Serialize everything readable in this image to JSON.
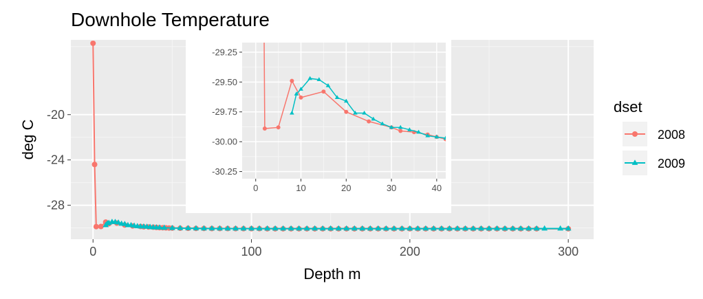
{
  "chart_data": {
    "type": "line",
    "title": "Downhole Temperature",
    "xlabel": "Depth m",
    "ylabel": "deg C",
    "xlim": [
      -14,
      316
    ],
    "ylim": [
      -31.0,
      -13.4
    ],
    "x_ticks": [
      0,
      100,
      200,
      300
    ],
    "x_tick_labels": [
      "0",
      "100",
      "200",
      "300"
    ],
    "y_ticks": [
      -20,
      -24,
      -28
    ],
    "y_tick_labels": [
      "-20",
      "-24",
      "-28"
    ],
    "grid": true,
    "legend": {
      "title": "dset",
      "position": "right",
      "entries": [
        "2008",
        "2009"
      ]
    },
    "series": [
      {
        "name": "2008",
        "color": "#F8766D",
        "marker": "circle",
        "x": [
          0,
          1,
          2,
          5,
          8,
          10,
          15,
          20,
          25,
          30,
          32,
          35,
          38,
          40,
          42,
          44,
          46,
          48,
          50,
          55,
          60,
          65,
          70,
          75,
          80,
          85,
          90,
          95,
          100,
          105,
          110,
          115,
          120,
          125,
          130,
          135,
          140,
          145,
          150,
          155,
          160,
          165,
          170,
          175,
          180,
          185,
          190,
          195,
          200,
          205,
          210,
          215,
          220,
          225,
          230,
          235,
          240,
          245,
          250,
          255,
          260,
          265,
          270,
          275,
          280,
          300
        ],
        "y": [
          -13.7,
          -24.4,
          -29.89,
          -29.88,
          -29.49,
          -29.63,
          -29.58,
          -29.75,
          -29.83,
          -29.88,
          -29.91,
          -29.92,
          -29.94,
          -29.96,
          -29.98,
          -29.99,
          -30.0,
          -30.01,
          -30.02,
          -30.03,
          -30.04,
          -30.05,
          -30.05,
          -30.06,
          -30.06,
          -30.06,
          -30.07,
          -30.07,
          -30.07,
          -30.07,
          -30.08,
          -30.08,
          -30.08,
          -30.08,
          -30.08,
          -30.08,
          -30.08,
          -30.08,
          -30.08,
          -30.08,
          -30.08,
          -30.08,
          -30.08,
          -30.08,
          -30.08,
          -30.08,
          -30.08,
          -30.08,
          -30.08,
          -30.08,
          -30.08,
          -30.08,
          -30.08,
          -30.08,
          -30.08,
          -30.08,
          -30.08,
          -30.08,
          -30.08,
          -30.08,
          -30.08,
          -30.08,
          -30.08,
          -30.08,
          -30.08,
          -30.08
        ]
      },
      {
        "name": "2009",
        "color": "#00BFC4",
        "marker": "triangle",
        "x": [
          8,
          9,
          10,
          12,
          14,
          16,
          18,
          20,
          22,
          24,
          26,
          28,
          30,
          32,
          34,
          36,
          38,
          40,
          42,
          45,
          50,
          55,
          60,
          65,
          70,
          75,
          80,
          85,
          90,
          95,
          100,
          105,
          110,
          115,
          120,
          125,
          130,
          135,
          140,
          145,
          150,
          155,
          160,
          165,
          170,
          175,
          180,
          185,
          190,
          195,
          200,
          205,
          210,
          215,
          220,
          225,
          230,
          235,
          240,
          245,
          250,
          255,
          260,
          265,
          270,
          275,
          280,
          285,
          295,
          300
        ],
        "y": [
          -29.76,
          -29.6,
          -29.56,
          -29.47,
          -29.48,
          -29.53,
          -29.63,
          -29.66,
          -29.76,
          -29.76,
          -29.81,
          -29.85,
          -29.88,
          -29.88,
          -29.9,
          -29.92,
          -29.95,
          -29.96,
          -29.97,
          -29.99,
          -30.01,
          -30.02,
          -30.03,
          -30.04,
          -30.05,
          -30.05,
          -30.05,
          -30.06,
          -30.06,
          -30.06,
          -30.06,
          -30.06,
          -30.06,
          -30.06,
          -30.06,
          -30.06,
          -30.06,
          -30.06,
          -30.06,
          -30.06,
          -30.06,
          -30.06,
          -30.06,
          -30.06,
          -30.06,
          -30.06,
          -30.06,
          -30.06,
          -30.06,
          -30.06,
          -30.06,
          -30.06,
          -30.06,
          -30.06,
          -30.06,
          -30.06,
          -30.06,
          -30.06,
          -30.06,
          -30.06,
          -30.06,
          -30.06,
          -30.06,
          -30.06,
          -30.06,
          -30.06,
          -30.06,
          -30.06,
          -30.06,
          -30.06
        ]
      }
    ],
    "inset": {
      "xlim": [
        -3,
        42
      ],
      "ylim": [
        -30.31,
        -29.17
      ],
      "x_ticks": [
        0,
        10,
        20,
        30,
        40
      ],
      "x_tick_labels": [
        "0",
        "10",
        "20",
        "30",
        "40"
      ],
      "y_ticks": [
        -29.25,
        -29.5,
        -29.75,
        -30.0,
        -30.25
      ],
      "y_tick_labels": [
        "-29.25",
        "-29.50",
        "-29.75",
        "-30.00",
        "-30.25"
      ]
    }
  }
}
